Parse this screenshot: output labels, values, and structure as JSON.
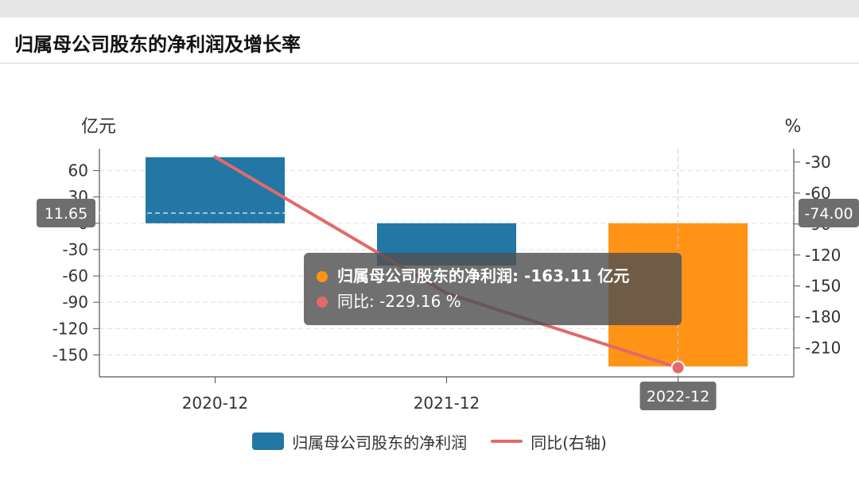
{
  "header": {
    "title": "归属母公司股东的净利润及增长率"
  },
  "colors": {
    "bar": "#2277a5",
    "bar_highlight": "#ff9316",
    "line": "#e26a6a",
    "grid": "#dddddd",
    "axis": "#555555"
  },
  "axis_pointer": {
    "left_value": "11.65",
    "right_value": "-74.00",
    "category": "2022-12"
  },
  "tooltip": {
    "rows": [
      {
        "label": "归属母公司股东的净利润: -163.11  亿元",
        "color": "#ff9316",
        "bold": true
      },
      {
        "label": "同比: -229.16  %",
        "color": "#e26a6a",
        "bold": false
      }
    ]
  },
  "legend": [
    {
      "label": "归属母公司股东的净利润",
      "color": "#2277a5",
      "kind": "bar"
    },
    {
      "label": "同比(右轴)",
      "color": "#e26a6a",
      "kind": "line"
    }
  ],
  "chart_data": {
    "type": "bar",
    "categories": [
      "2020-12",
      "2021-12",
      "2022-12"
    ],
    "series": [
      {
        "name": "归属母公司股东的净利润",
        "type": "bar",
        "axis": "left",
        "values": [
          75.3,
          -48.1,
          -163.11
        ]
      },
      {
        "name": "同比",
        "type": "line",
        "axis": "right",
        "values": [
          -25.0,
          -157.0,
          -229.16
        ]
      }
    ],
    "y_left": {
      "unit": "亿元",
      "ticks": [
        60,
        30,
        0,
        -30,
        -60,
        -90,
        -120,
        -150
      ],
      "range": [
        -175,
        85
      ]
    },
    "y_right": {
      "unit": "%",
      "ticks": [
        -30,
        -60,
        -90,
        -120,
        -150,
        -180,
        -210
      ],
      "range": [
        -238,
        -17
      ]
    },
    "highlight_index": 2,
    "grid": true,
    "legend_position": "bottom"
  }
}
